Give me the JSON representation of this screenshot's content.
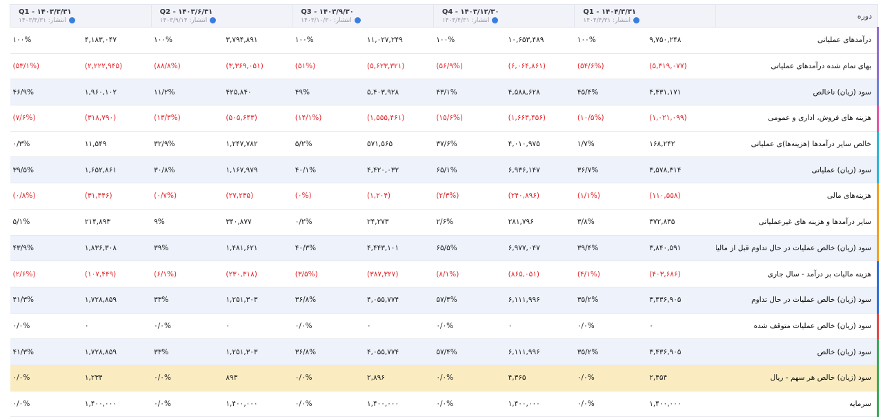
{
  "header": {
    "label": "دوره",
    "periods": [
      {
        "title": "Q1 - ۱۴۰۴/۳/۳۱",
        "published": "انتشار: ۱۴۰۴/۴/۳۱"
      },
      {
        "title": "Q4 - ۱۴۰۳/۱۲/۳۰",
        "published": "انتشار: ۱۴۰۴/۴/۳۱"
      },
      {
        "title": "Q3 - ۱۴۰۳/۹/۳۰",
        "published": "انتشار: ۱۴۰۳/۱۰/۳۰"
      },
      {
        "title": "Q2 - ۱۴۰۳/۶/۳۱",
        "published": "انتشار: ۱۴۰۳/۹/۱۴"
      },
      {
        "title": "Q1 - ۱۴۰۳/۳/۳۱",
        "published": "انتشار: ۱۴۰۳/۴/۳۱"
      }
    ]
  },
  "rows": [
    {
      "label": "درآمدهای عملیاتی",
      "cells": [
        [
          "۹,۷۵۰,۲۴۸",
          "۱۰۰%"
        ],
        [
          "۱۰,۶۵۳,۴۸۹",
          "۱۰۰%"
        ],
        [
          "۱۱,۰۲۷,۲۴۹",
          "۱۰۰%"
        ],
        [
          "۳,۷۹۴,۸۹۱",
          "۱۰۰%"
        ],
        [
          "۴,۱۸۳,۰۴۷",
          "۱۰۰%"
        ]
      ]
    },
    {
      "label": "بهای تمام شده درآمدهای عملیاتی",
      "cells": [
        [
          "(۵,۳۱۹,۰۷۷)",
          "(۵۴/۶%)"
        ],
        [
          "(۶,۰۶۴,۸۶۱)",
          "(۵۶/۹%)"
        ],
        [
          "(۵,۶۲۳,۳۲۱)",
          "(۵۱%)"
        ],
        [
          "(۳,۳۶۹,۰۵۱)",
          "(۸۸/۸%)"
        ],
        [
          "(۲,۲۲۲,۹۴۵)",
          "(۵۳/۱%)"
        ]
      ]
    },
    {
      "label": "سود (زیان) ناخالص",
      "cells": [
        [
          "۴,۴۳۱,۱۷۱",
          "۴۵/۴%"
        ],
        [
          "۴,۵۸۸,۶۲۸",
          "۴۳/۱%"
        ],
        [
          "۵,۴۰۳,۹۲۸",
          "۴۹%"
        ],
        [
          "۴۲۵,۸۴۰",
          "۱۱/۲%"
        ],
        [
          "۱,۹۶۰,۱۰۲",
          "۴۶/۹%"
        ]
      ]
    },
    {
      "label": "هزینه های فروش، اداری و عمومی",
      "cells": [
        [
          "(۱,۰۲۱,۰۹۹)",
          "(۱۰/۵%)"
        ],
        [
          "(۱,۶۶۳,۴۵۶)",
          "(۱۵/۶%)"
        ],
        [
          "(۱,۵۵۵,۴۶۱)",
          "(۱۴/۱%)"
        ],
        [
          "(۵۰۵,۶۴۳)",
          "(۱۳/۳%)"
        ],
        [
          "(۳۱۸,۷۹۰)",
          "(۷/۶%)"
        ]
      ]
    },
    {
      "label": "خالص سایر درآمدها (هزینه‌ها)ی عملیاتی",
      "cells": [
        [
          "۱۶۸,۲۴۲",
          "۱/۷%"
        ],
        [
          "۴,۰۱۰,۹۷۵",
          "۳۷/۶%"
        ],
        [
          "۵۷۱,۵۶۵",
          "۵/۲%"
        ],
        [
          "۱,۲۴۷,۷۸۲",
          "۳۲/۹%"
        ],
        [
          "۱۱,۵۴۹",
          "۰/۳%"
        ]
      ]
    },
    {
      "label": "سود (زیان) عملیاتی",
      "cells": [
        [
          "۳,۵۷۸,۳۱۴",
          "۳۶/۷%"
        ],
        [
          "۶,۹۳۶,۱۴۷",
          "۶۵/۱%"
        ],
        [
          "۴,۴۲۰,۰۳۲",
          "۴۰/۱%"
        ],
        [
          "۱,۱۶۷,۹۷۹",
          "۳۰/۸%"
        ],
        [
          "۱,۶۵۲,۸۶۱",
          "۳۹/۵%"
        ]
      ]
    },
    {
      "label": "هزینه‌های مالی",
      "cells": [
        [
          "(۱۱۰,۵۵۸)",
          "(۱/۱%)"
        ],
        [
          "(۲۴۰,۸۹۶)",
          "(۲/۳%)"
        ],
        [
          "(۱,۲۰۴)",
          "(۰%)"
        ],
        [
          "(۲۷,۲۳۵)",
          "(۰/۷%)"
        ],
        [
          "(۳۱,۴۴۶)",
          "(۰/۸%)"
        ]
      ]
    },
    {
      "label": "سایر درآمدها و هزینه های غیرعملیاتی",
      "cells": [
        [
          "۳۷۲,۸۳۵",
          "۳/۸%"
        ],
        [
          "۲۸۱,۷۹۶",
          "۲/۶%"
        ],
        [
          "۲۴,۲۷۳",
          "۰/۲%"
        ],
        [
          "۳۴۰,۸۷۷",
          "۹%"
        ],
        [
          "۲۱۴,۸۹۳",
          "۵/۱%"
        ]
      ]
    },
    {
      "label": "سود (زیان) خالص عملیات در حال تداوم قبل از مالیات",
      "cells": [
        [
          "۳,۸۴۰,۵۹۱",
          "۳۹/۴%"
        ],
        [
          "۶,۹۷۷,۰۴۷",
          "۶۵/۵%"
        ],
        [
          "۴,۴۴۳,۱۰۱",
          "۴۰/۳%"
        ],
        [
          "۱,۴۸۱,۶۲۱",
          "۳۹%"
        ],
        [
          "۱,۸۳۶,۳۰۸",
          "۴۳/۹%"
        ]
      ]
    },
    {
      "label": "هزینه مالیات بر درآمد - سال جاری",
      "cells": [
        [
          "(۴۰۳,۶۸۶)",
          "(۴/۱%)"
        ],
        [
          "(۸۶۵,۰۵۱)",
          "(۸/۱%)"
        ],
        [
          "(۳۸۷,۳۲۷)",
          "(۳/۵%)"
        ],
        [
          "(۲۳۰,۳۱۸)",
          "(۶/۱%)"
        ],
        [
          "(۱۰۷,۴۴۹)",
          "(۲/۶%)"
        ]
      ]
    },
    {
      "label": "سود (زیان) خالص عملیات در حال تداوم",
      "cells": [
        [
          "۳,۴۳۶,۹۰۵",
          "۳۵/۲%"
        ],
        [
          "۶,۱۱۱,۹۹۶",
          "۵۷/۴%"
        ],
        [
          "۴,۰۵۵,۷۷۴",
          "۳۶/۸%"
        ],
        [
          "۱,۲۵۱,۳۰۳",
          "۳۳%"
        ],
        [
          "۱,۷۲۸,۸۵۹",
          "۴۱/۳%"
        ]
      ]
    },
    {
      "label": "سود (زیان) خالص عملیات متوقف شده",
      "cells": [
        [
          "۰",
          "۰/۰%"
        ],
        [
          "۰",
          "۰/۰%"
        ],
        [
          "۰",
          "۰/۰%"
        ],
        [
          "۰",
          "۰/۰%"
        ],
        [
          "۰",
          "۰/۰%"
        ]
      ]
    },
    {
      "label": "سود (زیان) خالص",
      "cells": [
        [
          "۳,۴۳۶,۹۰۵",
          "۳۵/۲%"
        ],
        [
          "۶,۱۱۱,۹۹۶",
          "۵۷/۴%"
        ],
        [
          "۴,۰۵۵,۷۷۴",
          "۳۶/۸%"
        ],
        [
          "۱,۲۵۱,۳۰۳",
          "۳۳%"
        ],
        [
          "۱,۷۲۸,۸۵۹",
          "۴۱/۳%"
        ]
      ]
    },
    {
      "label": "سود (زیان) خالص هر سهم - ریال",
      "cells": [
        [
          "۲,۴۵۴",
          "۰/۰%"
        ],
        [
          "۴,۳۶۵",
          "۰/۰%"
        ],
        [
          "۲,۸۹۶",
          "۰/۰%"
        ],
        [
          "۸۹۳",
          "۰/۰%"
        ],
        [
          "۱,۲۳۴",
          "۰/۰%"
        ]
      ]
    },
    {
      "label": "سرمایه",
      "cells": [
        [
          "۱,۴۰۰,۰۰۰",
          "۰/۰%"
        ],
        [
          "۱,۴۰۰,۰۰۰",
          "۰/۰%"
        ],
        [
          "۱,۴۰۰,۰۰۰",
          "۰/۰%"
        ],
        [
          "۱,۴۰۰,۰۰۰",
          "۰/۰%"
        ],
        [
          "۱,۴۰۰,۰۰۰",
          "۰/۰%"
        ]
      ]
    }
  ]
}
